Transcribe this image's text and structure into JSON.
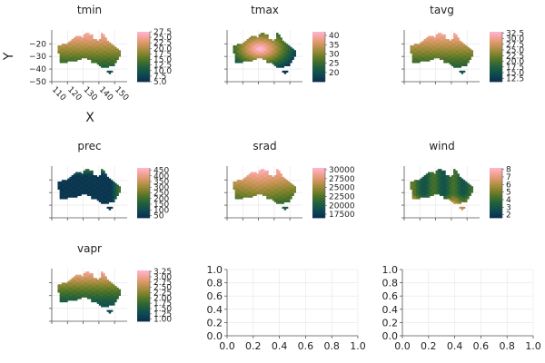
{
  "colormap": [
    "#0b2d4f",
    "#0e4a52",
    "#1f5f3e",
    "#4d7328",
    "#8a8630",
    "#c69354",
    "#f0a08a",
    "#ffb6d5"
  ],
  "colors": {
    "axis": "#555555",
    "grid": "#e6e6e6",
    "ocean": "#ffffff"
  },
  "chart_data": [
    {
      "type": "heatmap",
      "title": "tmin",
      "xlabel": "X",
      "ylabel": "Y",
      "xlim": [
        110,
        158
      ],
      "ylim": [
        -50,
        -9
      ],
      "xticks": [
        "110",
        "120",
        "130",
        "140",
        "150"
      ],
      "yticks": [
        "−20",
        "−30",
        "−40",
        "−50"
      ],
      "colorbar": {
        "min": 5.0,
        "max": 27.5,
        "ticks": [
          "27.5",
          "25.0",
          "22.5",
          "20.0",
          "17.5",
          "15.0",
          "12.5",
          "10.0",
          "7.5",
          "5.0"
        ]
      },
      "pattern": "north_warm"
    },
    {
      "type": "heatmap",
      "title": "tmax",
      "xlabel": "",
      "ylabel": "",
      "colorbar": {
        "min": 15,
        "max": 42,
        "ticks": [
          "40",
          "35",
          "30",
          "25",
          "20"
        ]
      },
      "pattern": "interior_hot"
    },
    {
      "type": "heatmap",
      "title": "tavg",
      "xlabel": "",
      "ylabel": "",
      "colorbar": {
        "min": 11,
        "max": 33,
        "ticks": [
          "32.5",
          "30.0",
          "27.5",
          "25.0",
          "22.5",
          "20.0",
          "17.5",
          "15.0",
          "12.5"
        ]
      },
      "pattern": "north_warm"
    },
    {
      "type": "heatmap",
      "title": "prec",
      "xlabel": "",
      "ylabel": "",
      "colorbar": {
        "min": 30,
        "max": 470,
        "ticks": [
          "450",
          "400",
          "350",
          "300",
          "250",
          "200",
          "150",
          "100",
          "50"
        ]
      },
      "pattern": "coast_wet"
    },
    {
      "type": "heatmap",
      "title": "srad",
      "xlabel": "",
      "ylabel": "",
      "colorbar": {
        "min": 16500,
        "max": 30500,
        "ticks": [
          "30000",
          "27500",
          "25000",
          "22500",
          "20000",
          "17500"
        ]
      },
      "pattern": "north_high"
    },
    {
      "type": "heatmap",
      "title": "wind",
      "xlabel": "",
      "ylabel": "",
      "colorbar": {
        "min": 1.6,
        "max": 8.2,
        "ticks": [
          "8",
          "7",
          "6",
          "5",
          "4",
          "3",
          "2"
        ]
      },
      "pattern": "south_windy"
    },
    {
      "type": "heatmap",
      "title": "vapr",
      "xlabel": "",
      "ylabel": "",
      "colorbar": {
        "min": 0.9,
        "max": 3.3,
        "ticks": [
          "3.25",
          "3.00",
          "2.75",
          "2.50",
          "2.25",
          "2.00",
          "1.75",
          "1.50",
          "1.25",
          "1.00"
        ]
      },
      "pattern": "north_humid"
    },
    {
      "type": "scatter",
      "title": "",
      "xlim": [
        0,
        1
      ],
      "ylim": [
        0,
        1
      ],
      "xticks": [
        "0.0",
        "0.2",
        "0.4",
        "0.6",
        "0.8",
        "1.0"
      ],
      "yticks": [
        "0.0",
        "0.2",
        "0.4",
        "0.6",
        "0.8",
        "1.0"
      ],
      "series": []
    },
    {
      "type": "scatter",
      "title": "",
      "xlim": [
        0,
        1
      ],
      "ylim": [
        0,
        1
      ],
      "xticks": [
        "0.0",
        "0.2",
        "0.4",
        "0.6",
        "0.8",
        "1.0"
      ],
      "yticks": [
        "0.0",
        "0.2",
        "0.4",
        "0.6",
        "0.8",
        "1.0"
      ],
      "series": []
    }
  ]
}
